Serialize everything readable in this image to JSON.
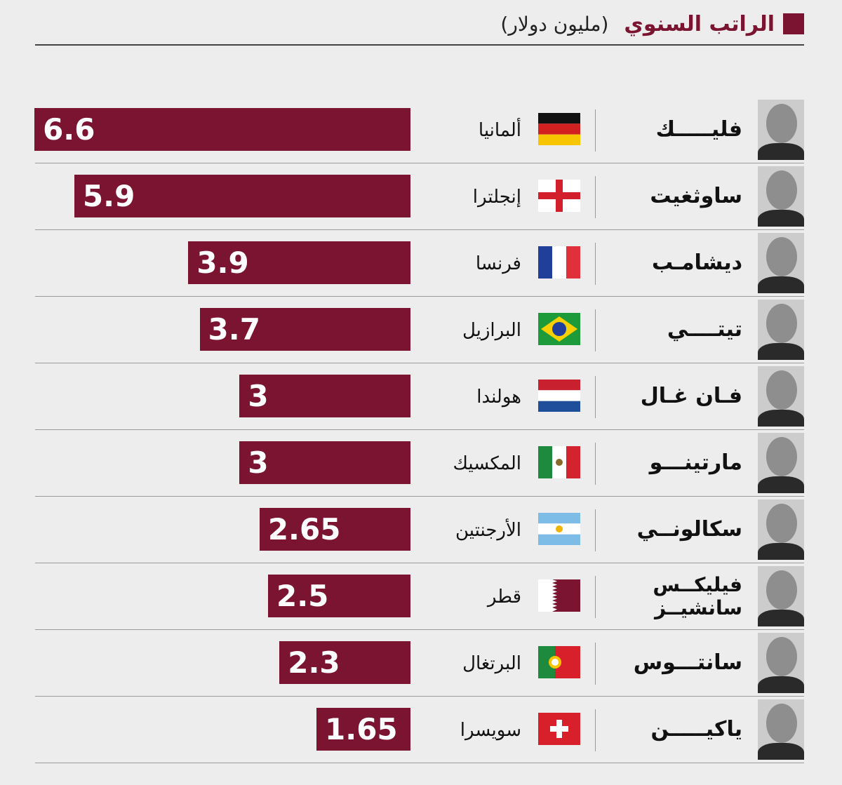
{
  "chart_data": {
    "type": "bar",
    "orientation": "horizontal",
    "title": "الراتب السنوي",
    "unit": "(مليون دولار)",
    "grid": false,
    "legend": "top-right",
    "colors": {
      "bar": "#7a1430",
      "background": "#ededee"
    },
    "rows": [
      {
        "coach": "فليـــــك",
        "country": "ألمانيا",
        "flag": "germany-flag",
        "value": 6.6,
        "label": "6.6"
      },
      {
        "coach": "ساوثغيت",
        "country": "إنجلترا",
        "flag": "england-flag",
        "value": 5.9,
        "label": "5.9"
      },
      {
        "coach": "ديشامـب",
        "country": "فرنسا",
        "flag": "france-flag",
        "value": 3.9,
        "label": "3.9"
      },
      {
        "coach": "تيتــــي",
        "country": "البرازيل",
        "flag": "brazil-flag",
        "value": 3.7,
        "label": "3.7"
      },
      {
        "coach": "فـان غـال",
        "country": "هولندا",
        "flag": "netherlands-flag",
        "value": 3,
        "label": "3"
      },
      {
        "coach": "مارتينـــو",
        "country": "المكسيك",
        "flag": "mexico-flag",
        "value": 3,
        "label": "3"
      },
      {
        "coach": "سكالونــي",
        "country": "الأرجنتين",
        "flag": "argentina-flag",
        "value": 2.65,
        "label": "2.65"
      },
      {
        "coach": "فيليكــس سانشيــز",
        "country": "قطر",
        "flag": "qatar-flag",
        "value": 2.5,
        "label": "2.5"
      },
      {
        "coach": "سانتـــوس",
        "country": "البرتغال",
        "flag": "portugal-flag",
        "value": 2.3,
        "label": "2.3"
      },
      {
        "coach": "ياكيـــــن",
        "country": "سويسرا",
        "flag": "switzerland-flag",
        "value": 1.65,
        "label": "1.65"
      }
    ]
  }
}
